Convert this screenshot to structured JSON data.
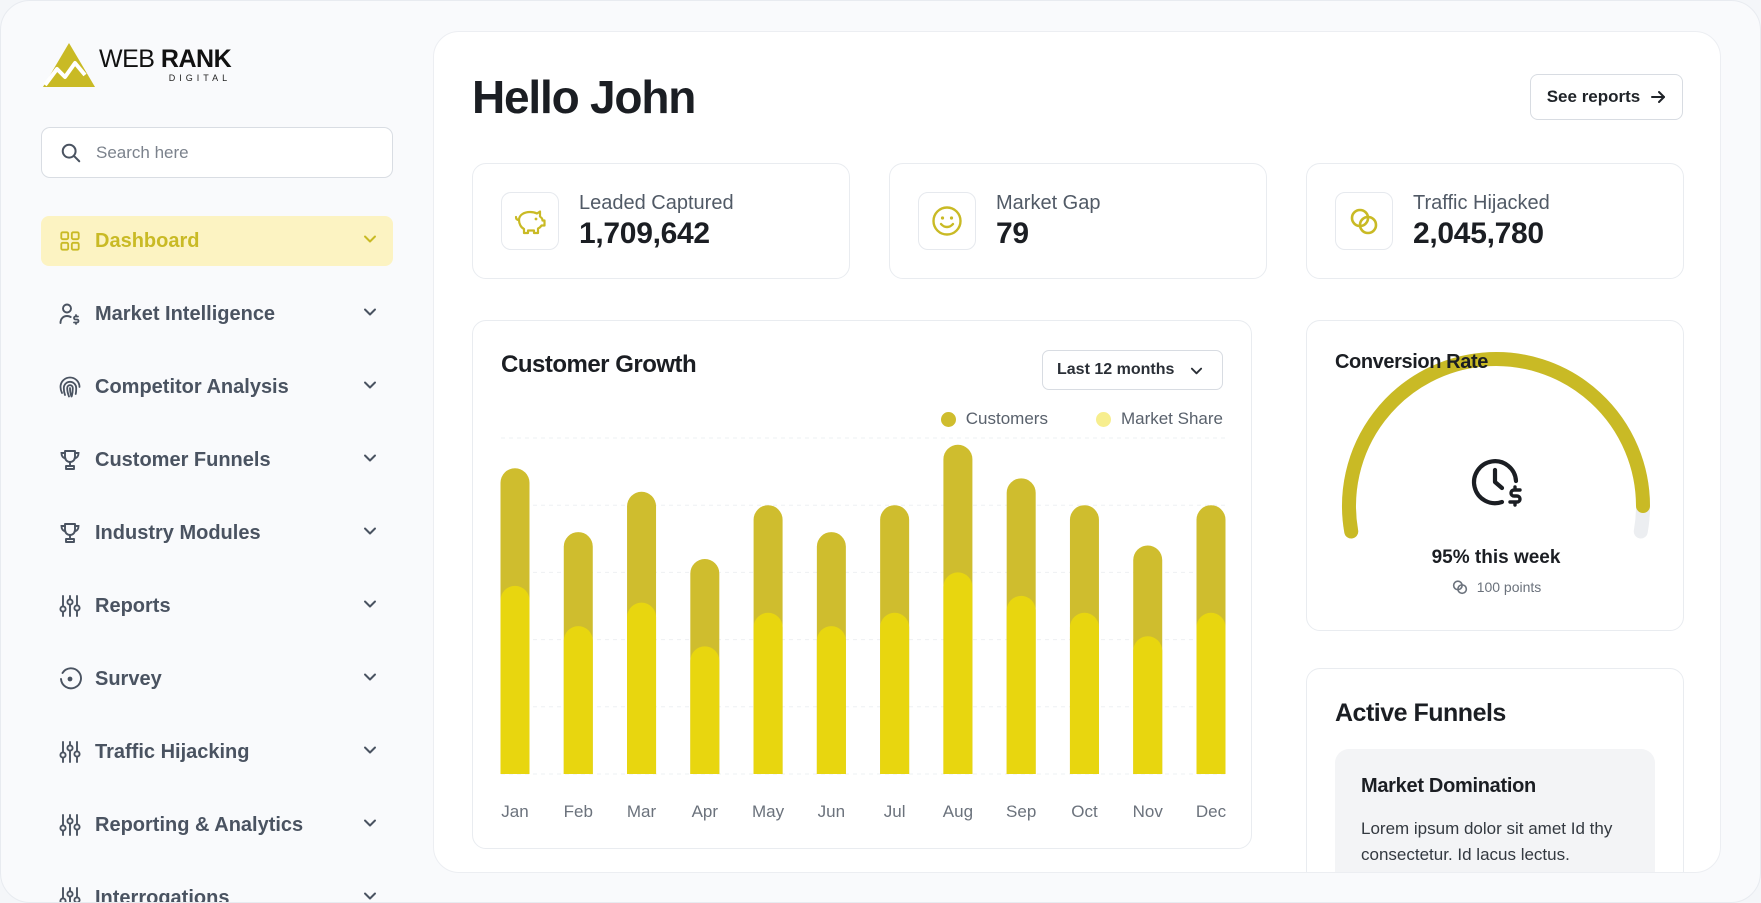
{
  "brand": {
    "name_light": "WEB",
    "name_bold": "RANK",
    "sub": "DIGITAL",
    "accent": "#c9ba25"
  },
  "search": {
    "placeholder": "Search here"
  },
  "nav": [
    {
      "label": "Dashboard",
      "icon": "grid-icon",
      "active": true
    },
    {
      "label": "Market Intelligence",
      "icon": "user-dollar-icon"
    },
    {
      "label": "Competitor Analysis",
      "icon": "fingerprint-icon"
    },
    {
      "label": "Customer Funnels",
      "icon": "trophy-icon"
    },
    {
      "label": "Industry Modules",
      "icon": "trophy-icon"
    },
    {
      "label": "Reports",
      "icon": "sliders-icon"
    },
    {
      "label": "Survey",
      "icon": "eye-target-icon"
    },
    {
      "label": "Traffic Hijacking",
      "icon": "sliders-icon"
    },
    {
      "label": "Reporting & Analytics",
      "icon": "sliders-icon"
    },
    {
      "label": "Interrogations",
      "icon": "sliders-icon"
    }
  ],
  "header": {
    "greeting": "Hello John",
    "see_reports": "See reports"
  },
  "stats": [
    {
      "label": "Leaded Captured",
      "value": "1,709,642",
      "icon": "piggy-bank-icon"
    },
    {
      "label": "Market Gap",
      "value": "79",
      "icon": "smiley-icon"
    },
    {
      "label": "Traffic Hijacked",
      "value": "2,045,780",
      "icon": "linked-circles-icon"
    }
  ],
  "customer_growth": {
    "title": "Customer Growth",
    "range": "Last 12 months",
    "legend": {
      "customers": "Customers",
      "market_share": "Market Share"
    }
  },
  "chart_data": {
    "type": "bar",
    "title": "Customer Growth",
    "categories": [
      "Jan",
      "Feb",
      "Mar",
      "Apr",
      "May",
      "Jun",
      "Jul",
      "Aug",
      "Sep",
      "Oct",
      "Nov",
      "Dec"
    ],
    "series": [
      {
        "name": "Customers",
        "color": "#cfbd2e",
        "values": [
          91,
          72,
          84,
          64,
          80,
          72,
          80,
          98,
          88,
          80,
          68,
          80
        ]
      },
      {
        "name": "Market Share",
        "color": "#e8d60f",
        "values": [
          56,
          44,
          51,
          38,
          48,
          44,
          48,
          60,
          53,
          48,
          41,
          48
        ]
      }
    ],
    "stacked": false,
    "overlaid": true,
    "ylim": [
      0,
      100
    ],
    "grid": true
  },
  "conversion": {
    "title": "Conversion Rate",
    "percent": 95,
    "value_text": "95% this week",
    "points_text": "100 points",
    "icon": "clock-dollar-icon"
  },
  "funnels": {
    "title": "Active Funnels",
    "items": [
      {
        "name": "Market Domination",
        "description": "Lorem ipsum dolor sit amet Id thy consectetur. Id lacus lectus."
      }
    ]
  }
}
